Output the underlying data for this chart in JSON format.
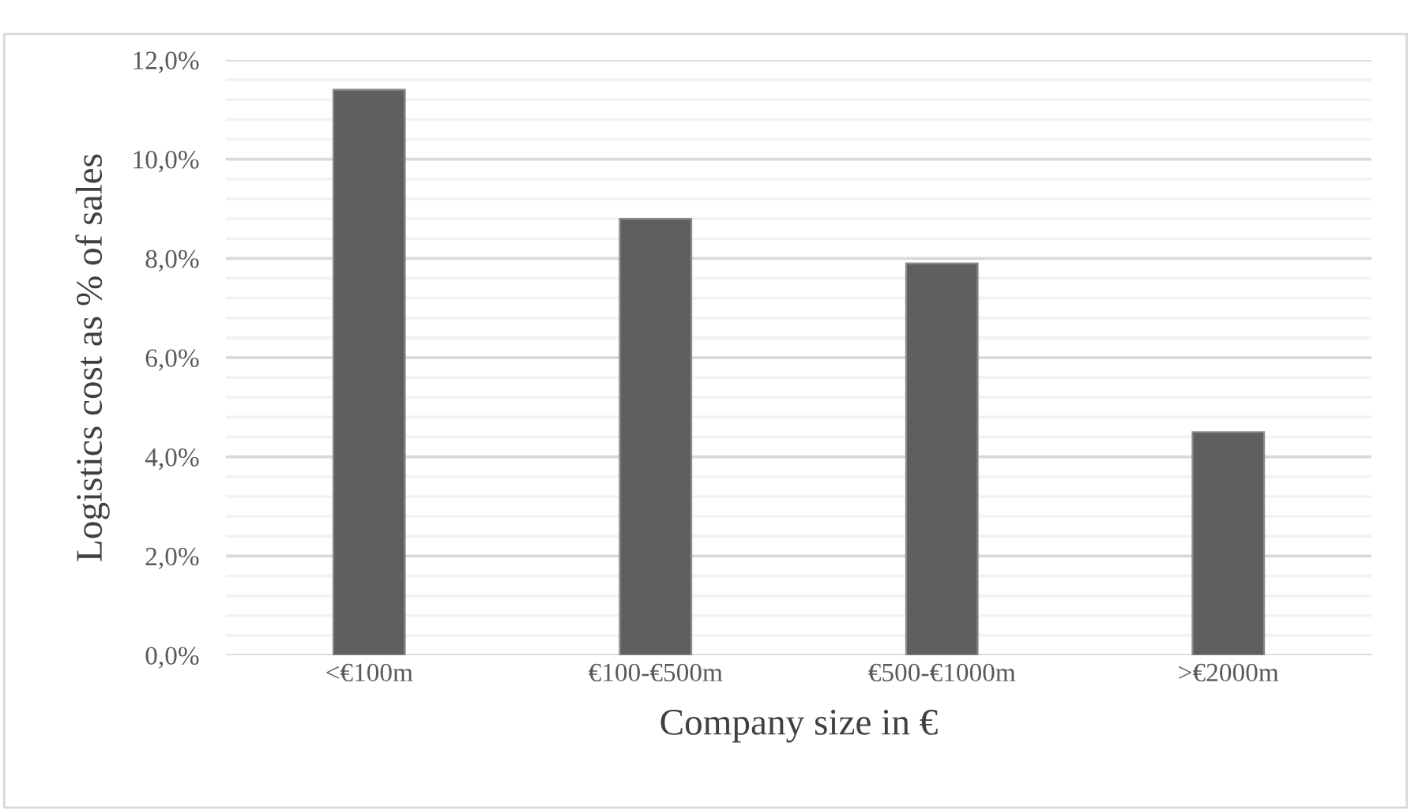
{
  "chart_data": {
    "type": "bar",
    "xlabel": "Company size in €",
    "ylabel": "Logistics cost as % of sales",
    "categories": [
      "<€100m",
      "€100-€500m",
      "€500-€1000m",
      ">€2000m"
    ],
    "values": [
      11.4,
      8.8,
      7.9,
      4.5
    ],
    "color": "#5f5f5f",
    "ylim": [
      0,
      12
    ],
    "yticks": [
      {
        "value": 0,
        "label": "0,0%"
      },
      {
        "value": 0.4,
        "label": null
      },
      {
        "value": 0.8,
        "label": null
      },
      {
        "value": 1.2,
        "label": null
      },
      {
        "value": 1.6,
        "label": null
      },
      {
        "value": 2,
        "label": "2,0%"
      },
      {
        "value": 2.4,
        "label": null
      },
      {
        "value": 2.8,
        "label": null
      },
      {
        "value": 3.2,
        "label": null
      },
      {
        "value": 3.6,
        "label": null
      },
      {
        "value": 4,
        "label": "4,0%"
      },
      {
        "value": 4.4,
        "label": null
      },
      {
        "value": 4.8,
        "label": null
      },
      {
        "value": 5.2,
        "label": null
      },
      {
        "value": 5.6,
        "label": null
      },
      {
        "value": 6,
        "label": "6,0%"
      },
      {
        "value": 6.4,
        "label": null
      },
      {
        "value": 6.8,
        "label": null
      },
      {
        "value": 7.2,
        "label": null
      },
      {
        "value": 7.6,
        "label": null
      },
      {
        "value": 8,
        "label": "8,0%"
      },
      {
        "value": 8.4,
        "label": null
      },
      {
        "value": 8.8,
        "label": null
      },
      {
        "value": 9.2,
        "label": null
      },
      {
        "value": 9.6,
        "label": null
      },
      {
        "value": 10,
        "label": "10,0%"
      },
      {
        "value": 10.4,
        "label": null
      },
      {
        "value": 10.8,
        "label": null
      },
      {
        "value": 11.2,
        "label": null
      },
      {
        "value": 11.6,
        "label": null
      },
      {
        "value": 12,
        "label": "12,0%"
      }
    ],
    "grid": "y"
  }
}
